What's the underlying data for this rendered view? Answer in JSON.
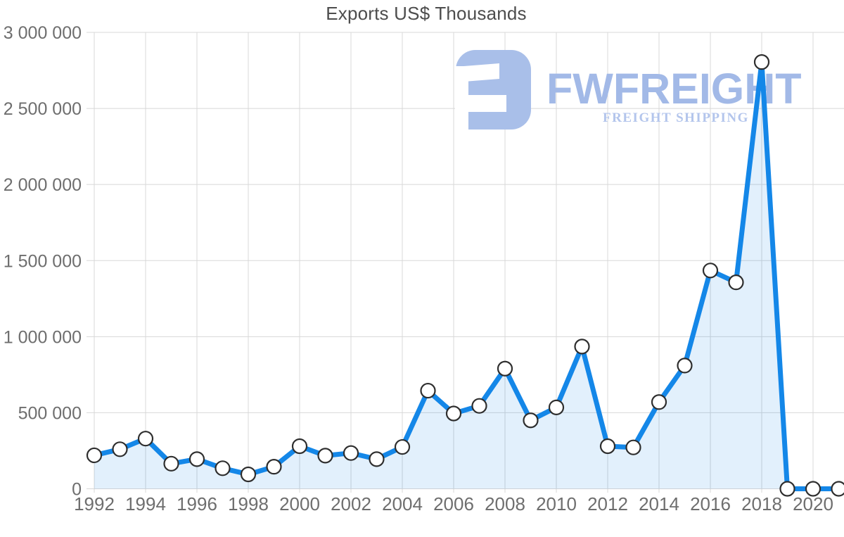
{
  "chart_data": {
    "type": "area",
    "title": "Exports US$ Thousands",
    "series_name": "Exports US$ Thousands",
    "categories": [
      1992,
      1993,
      1994,
      1995,
      1996,
      1997,
      1998,
      1999,
      2000,
      2001,
      2002,
      2003,
      2004,
      2005,
      2006,
      2007,
      2008,
      2009,
      2010,
      2011,
      2012,
      2013,
      2014,
      2015,
      2016,
      2017,
      2018,
      2019,
      2020,
      2021
    ],
    "values": [
      220000,
      260000,
      330000,
      165000,
      195000,
      135000,
      95000,
      145000,
      280000,
      218000,
      235000,
      195000,
      275000,
      645000,
      495000,
      545000,
      790000,
      450000,
      535000,
      935000,
      280000,
      272000,
      570000,
      810000,
      1435000,
      1357000,
      2805000,
      0,
      0,
      0
    ],
    "x_ticks": [
      1992,
      1994,
      1996,
      1998,
      2000,
      2002,
      2004,
      2006,
      2008,
      2010,
      2012,
      2014,
      2016,
      2018,
      2020
    ],
    "y_ticks": [
      {
        "value": 0,
        "label": "0"
      },
      {
        "value": 500000,
        "label": "500 000"
      },
      {
        "value": 1000000,
        "label": "1 000 000"
      },
      {
        "value": 1500000,
        "label": "1 500 000"
      },
      {
        "value": 2000000,
        "label": "2 000 000"
      },
      {
        "value": 2500000,
        "label": "2 500 000"
      },
      {
        "value": 3000000,
        "label": "3 000 000"
      }
    ],
    "ylim": [
      0,
      3000000
    ],
    "xlabel": "",
    "ylabel": "",
    "grid": "on",
    "legend": "none",
    "marker": "circle"
  },
  "watermark": {
    "brand": "FWFREIGHT",
    "tagline": "FREIGHT SHIPPING"
  },
  "colors": {
    "line": "#1487e8",
    "area_fill": "rgba(20,135,232,0.12)",
    "marker_fill": "#ffffff",
    "marker_stroke": "#2e2e2e",
    "grid": "#d8d8d8",
    "tick_label": "#6e6e6e",
    "title": "#4d4d4d",
    "logo_icon": "#a9bfe9",
    "logo_text": "#a2b9e7",
    "logo_tagline": "#b3c5ec"
  }
}
